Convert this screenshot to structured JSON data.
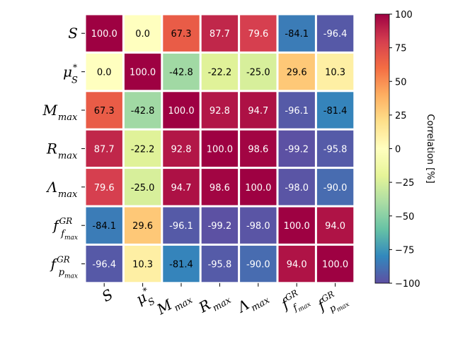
{
  "chart_data": {
    "type": "heatmap",
    "title": "",
    "row_labels": [
      {
        "base": "S",
        "sup": "",
        "sub": ""
      },
      {
        "base": "μ",
        "sup": "*",
        "sub": "S"
      },
      {
        "base": "M",
        "sup": "",
        "sub": "max"
      },
      {
        "base": "R",
        "sup": "",
        "sub": "max"
      },
      {
        "base": "Λ",
        "sup": "",
        "sub": "max"
      },
      {
        "base": "f",
        "sup": "GR",
        "sub": "f",
        "subsub": "max"
      },
      {
        "base": "f",
        "sup": "GR",
        "sub": "p",
        "subsub": "max"
      }
    ],
    "col_labels": [
      {
        "base": "S",
        "sup": "",
        "sub": ""
      },
      {
        "base": "μ",
        "sup": "*",
        "sub": "S"
      },
      {
        "base": "M",
        "sup": "",
        "sub": "max"
      },
      {
        "base": "R",
        "sup": "",
        "sub": "max"
      },
      {
        "base": "Λ",
        "sup": "",
        "sub": "max"
      },
      {
        "base": "f",
        "sup": "GR",
        "sub": "f",
        "subsub": "max"
      },
      {
        "base": "f",
        "sup": "GR",
        "sub": "p",
        "subsub": "max"
      }
    ],
    "values": [
      [
        100.0,
        0.0,
        67.3,
        87.7,
        79.6,
        -84.1,
        -96.4
      ],
      [
        0.0,
        100.0,
        -42.8,
        -22.2,
        -25.0,
        29.6,
        10.3
      ],
      [
        67.3,
        -42.8,
        100.0,
        92.8,
        94.7,
        -96.1,
        -81.4
      ],
      [
        87.7,
        -22.2,
        92.8,
        100.0,
        98.6,
        -99.2,
        -95.8
      ],
      [
        79.6,
        -25.0,
        94.7,
        98.6,
        100.0,
        -98.0,
        -90.0
      ],
      [
        -84.1,
        29.6,
        -96.1,
        -99.2,
        -98.0,
        100.0,
        94.0
      ],
      [
        -96.4,
        10.3,
        -81.4,
        -95.8,
        -90.0,
        94.0,
        100.0
      ]
    ],
    "colormap": "Spectral_r",
    "colorbar": {
      "label": "Correlation [%]",
      "range": [
        -100,
        100
      ],
      "ticks": [
        "100",
        "75",
        "50",
        "25",
        "0",
        "−25",
        "−50",
        "−75",
        "−100"
      ],
      "tick_values": [
        100,
        75,
        50,
        25,
        0,
        -25,
        -50,
        -75,
        -100
      ]
    }
  }
}
